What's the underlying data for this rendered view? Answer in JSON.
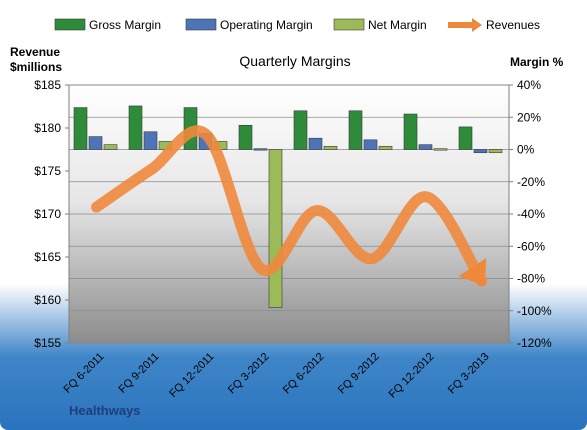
{
  "chart_data": {
    "type": "bar",
    "title": "Quarterly Margins",
    "company": "Healthways",
    "left_axis_title_line1": "Revenue",
    "left_axis_title_line2": "$millions",
    "right_axis_title": "Margin %",
    "categories": [
      "FQ 6-2011",
      "FQ 9-2011",
      "FQ 12-2011",
      "FQ 3-2012",
      "FQ 6-2012",
      "FQ 9-2012",
      "FQ 12-2012",
      "FQ 3-2013"
    ],
    "left_axis": {
      "min": 155,
      "max": 185,
      "ticks": [
        "$155",
        "$160",
        "$165",
        "$170",
        "$175",
        "$180",
        "$185"
      ]
    },
    "right_axis": {
      "min": -120,
      "max": 40,
      "ticks": [
        "-120%",
        "-100%",
        "-80%",
        "-60%",
        "-40%",
        "-20%",
        "0%",
        "20%",
        "40%"
      ]
    },
    "series": [
      {
        "name": "Gross Margin",
        "axis": "right",
        "color": "#2e8b3a",
        "values": [
          26,
          27,
          26,
          15,
          24,
          24,
          22,
          14
        ]
      },
      {
        "name": "Operating Margin",
        "axis": "right",
        "color": "#4e74b8",
        "values": [
          8,
          11,
          10,
          0.5,
          7,
          6,
          3,
          -2
        ]
      },
      {
        "name": "Net Margin",
        "axis": "right",
        "color": "#9bbb59",
        "values": [
          3,
          5,
          5,
          -98,
          2,
          2,
          0.5,
          -2
        ]
      },
      {
        "name": "Revenues",
        "axis": "left",
        "color": "#f0883c",
        "type": "line",
        "values": [
          170.8,
          175.2,
          179.2,
          163.6,
          170.4,
          164.8,
          172.0,
          162.2
        ]
      }
    ],
    "grid": true,
    "legend_position": "top"
  }
}
